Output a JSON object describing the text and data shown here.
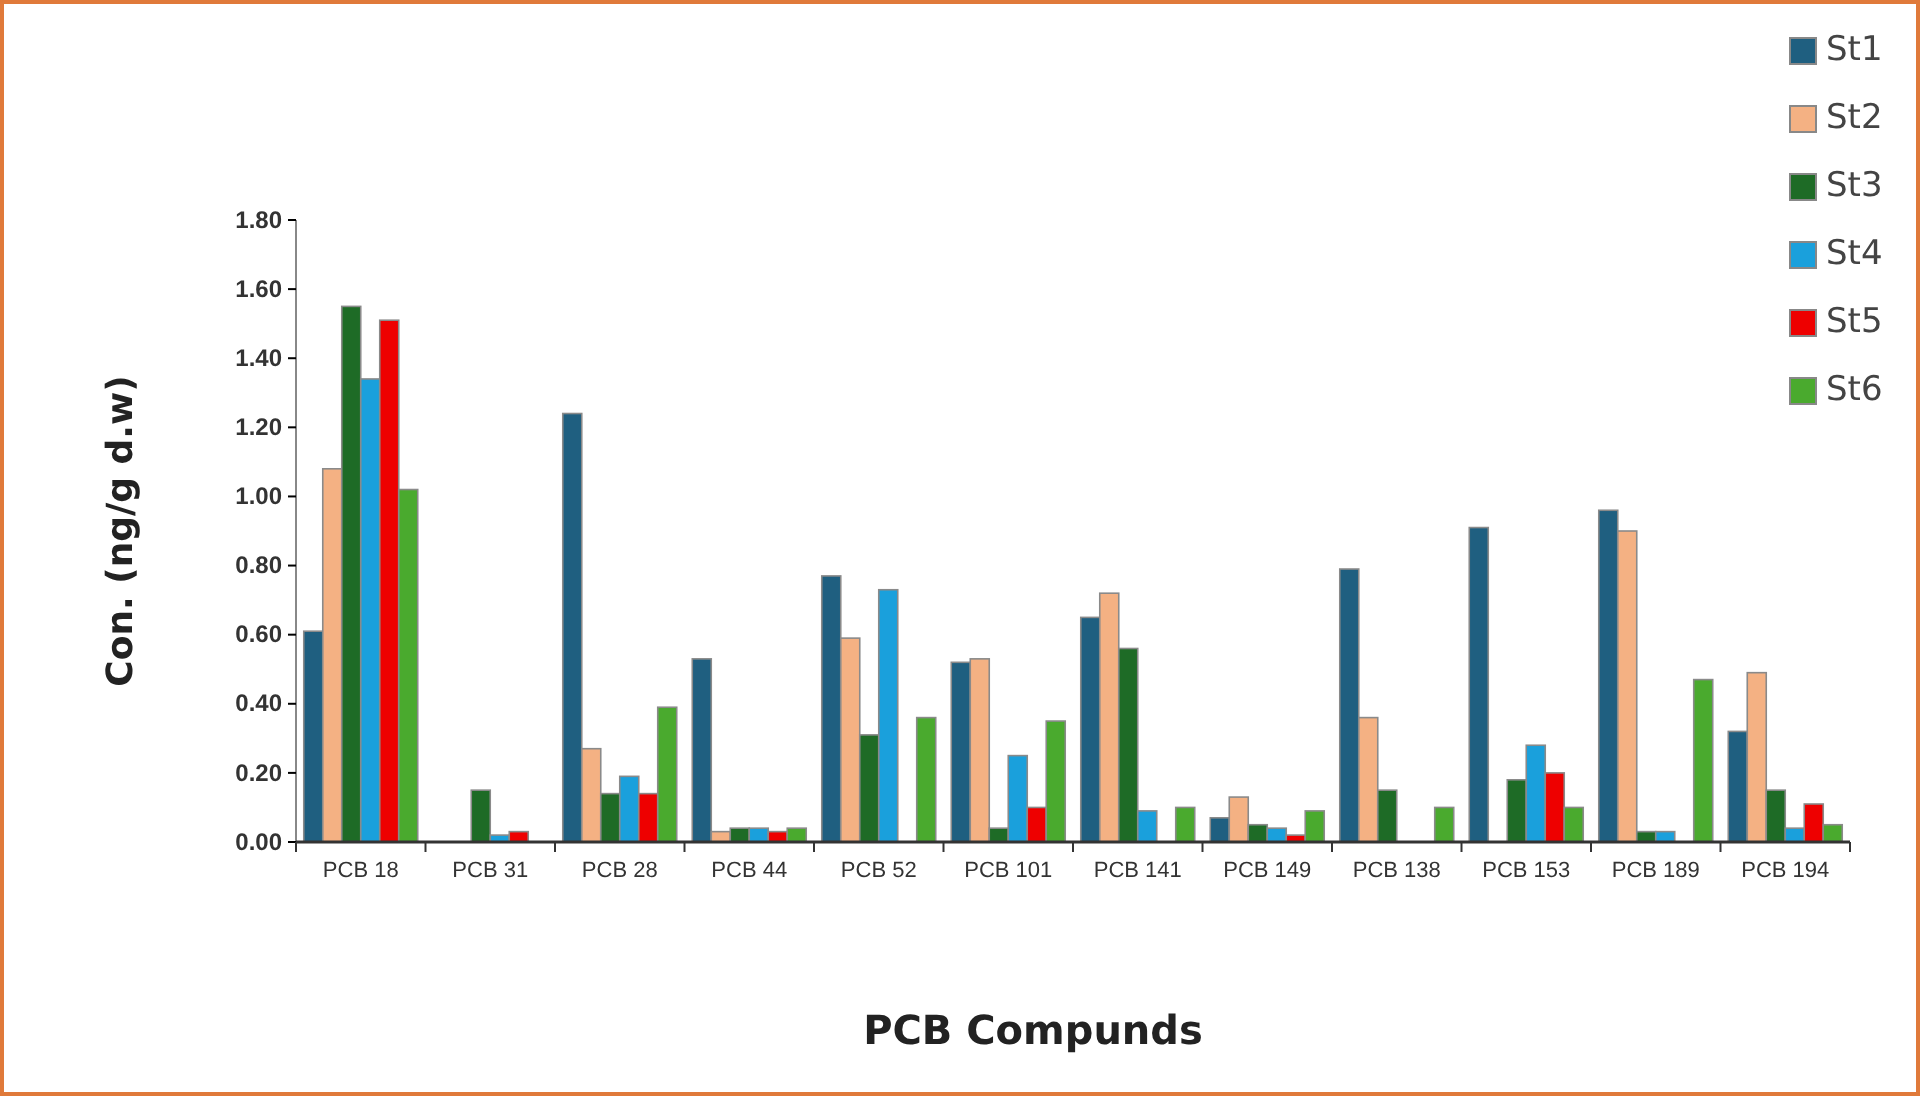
{
  "chart_data": {
    "type": "bar",
    "xlabel": "PCB Compunds",
    "ylabel": "Con. (ng/g d.w)",
    "categories": [
      "PCB 18",
      "PCB 31",
      "PCB 28",
      "PCB 44",
      "PCB 52",
      "PCB 101",
      "PCB 141",
      "PCB 149",
      "PCB 138",
      "PCB 153",
      "PCB 189",
      "PCB 194"
    ],
    "series": [
      {
        "name": "St1",
        "color": "#1f5f80",
        "values": [
          0.61,
          0,
          1.24,
          0.53,
          0.77,
          0.52,
          0.65,
          0.07,
          0.79,
          0.91,
          0.96,
          0.32
        ]
      },
      {
        "name": "St2",
        "color": "#f4b183",
        "values": [
          1.08,
          0,
          0.27,
          0.03,
          0.59,
          0.53,
          0.72,
          0.13,
          0.36,
          0,
          0.9,
          0.49
        ]
      },
      {
        "name": "St3",
        "color": "#1e6b26",
        "values": [
          1.55,
          0.15,
          0.14,
          0.04,
          0.31,
          0.04,
          0.56,
          0.05,
          0.15,
          0.18,
          0.03,
          0.15
        ]
      },
      {
        "name": "St4",
        "color": "#1aa0dc",
        "values": [
          1.34,
          0.02,
          0.19,
          0.04,
          0.73,
          0.25,
          0.09,
          0.04,
          0,
          0.28,
          0.03,
          0.04
        ]
      },
      {
        "name": "St5",
        "color": "#ee0000",
        "values": [
          1.51,
          0.03,
          0.14,
          0.03,
          0,
          0.1,
          0,
          0.02,
          0,
          0.2,
          0,
          0.11
        ]
      },
      {
        "name": "St6",
        "color": "#4aaa2e",
        "values": [
          1.02,
          0,
          0.39,
          0.04,
          0.36,
          0.35,
          0.1,
          0.09,
          0.1,
          0.1,
          0.47,
          0.05
        ]
      }
    ],
    "ylim": [
      0,
      1.8
    ],
    "yticks": [
      {
        "value": 0,
        "label": "0.00"
      },
      {
        "value": 0.2,
        "label": "0.20"
      },
      {
        "value": 0.4,
        "label": "0.40"
      },
      {
        "value": 0.6,
        "label": "0.60"
      },
      {
        "value": 0.8,
        "label": "0.80"
      },
      {
        "value": 1,
        "label": "1.00"
      },
      {
        "value": 1.2,
        "label": "1.20"
      },
      {
        "value": 1.4,
        "label": "1.40"
      },
      {
        "value": 1.6,
        "label": "1.60"
      },
      {
        "value": 1.8,
        "label": "1.80"
      }
    ],
    "grid": false,
    "legend": "top right"
  }
}
